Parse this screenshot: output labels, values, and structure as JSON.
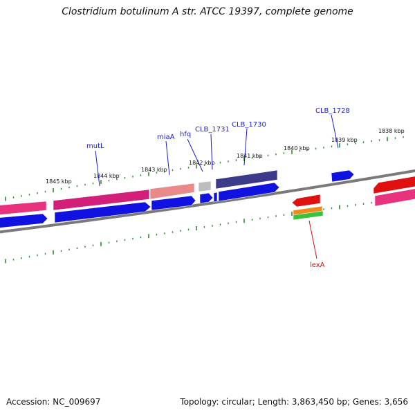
{
  "title": "Clostridium botulinum A str. ATCC 19397, complete genome",
  "footer": {
    "accession": "Accession: NC_009697",
    "topology": "Topology: circular; Length: 3,863,450 bp; Genes: 3,656"
  },
  "colors": {
    "backbone": "#7a7a7a",
    "tick": "#2a8a2a",
    "forward_label": "#1a1acc",
    "reverse_label": "#cc1111",
    "pink": "#e8327e",
    "magenta": "#d21f7a",
    "salmon": "#e98a8a",
    "gray": "#bdbdbd",
    "indigo": "#3d3a8a",
    "blue": "#1212e0",
    "red": "#e01010",
    "orange": "#f08a1a",
    "green": "#3ac23a"
  },
  "scale_labels": [
    "1845 kbp",
    "1844 kbp",
    "1843 kbp",
    "1842 kbp",
    "1841 kbp",
    "1840 kbp",
    "1839 kbp",
    "1838 kbp"
  ],
  "gene_labels": [
    {
      "name": "mutL",
      "strand": "forward"
    },
    {
      "name": "miaA",
      "strand": "forward"
    },
    {
      "name": "hfq",
      "strand": "forward"
    },
    {
      "name": "CLB_1731",
      "strand": "forward"
    },
    {
      "name": "CLB_1730",
      "strand": "forward"
    },
    {
      "name": "CLB_1728",
      "strand": "forward"
    },
    {
      "name": "lexA",
      "strand": "reverse"
    }
  ]
}
